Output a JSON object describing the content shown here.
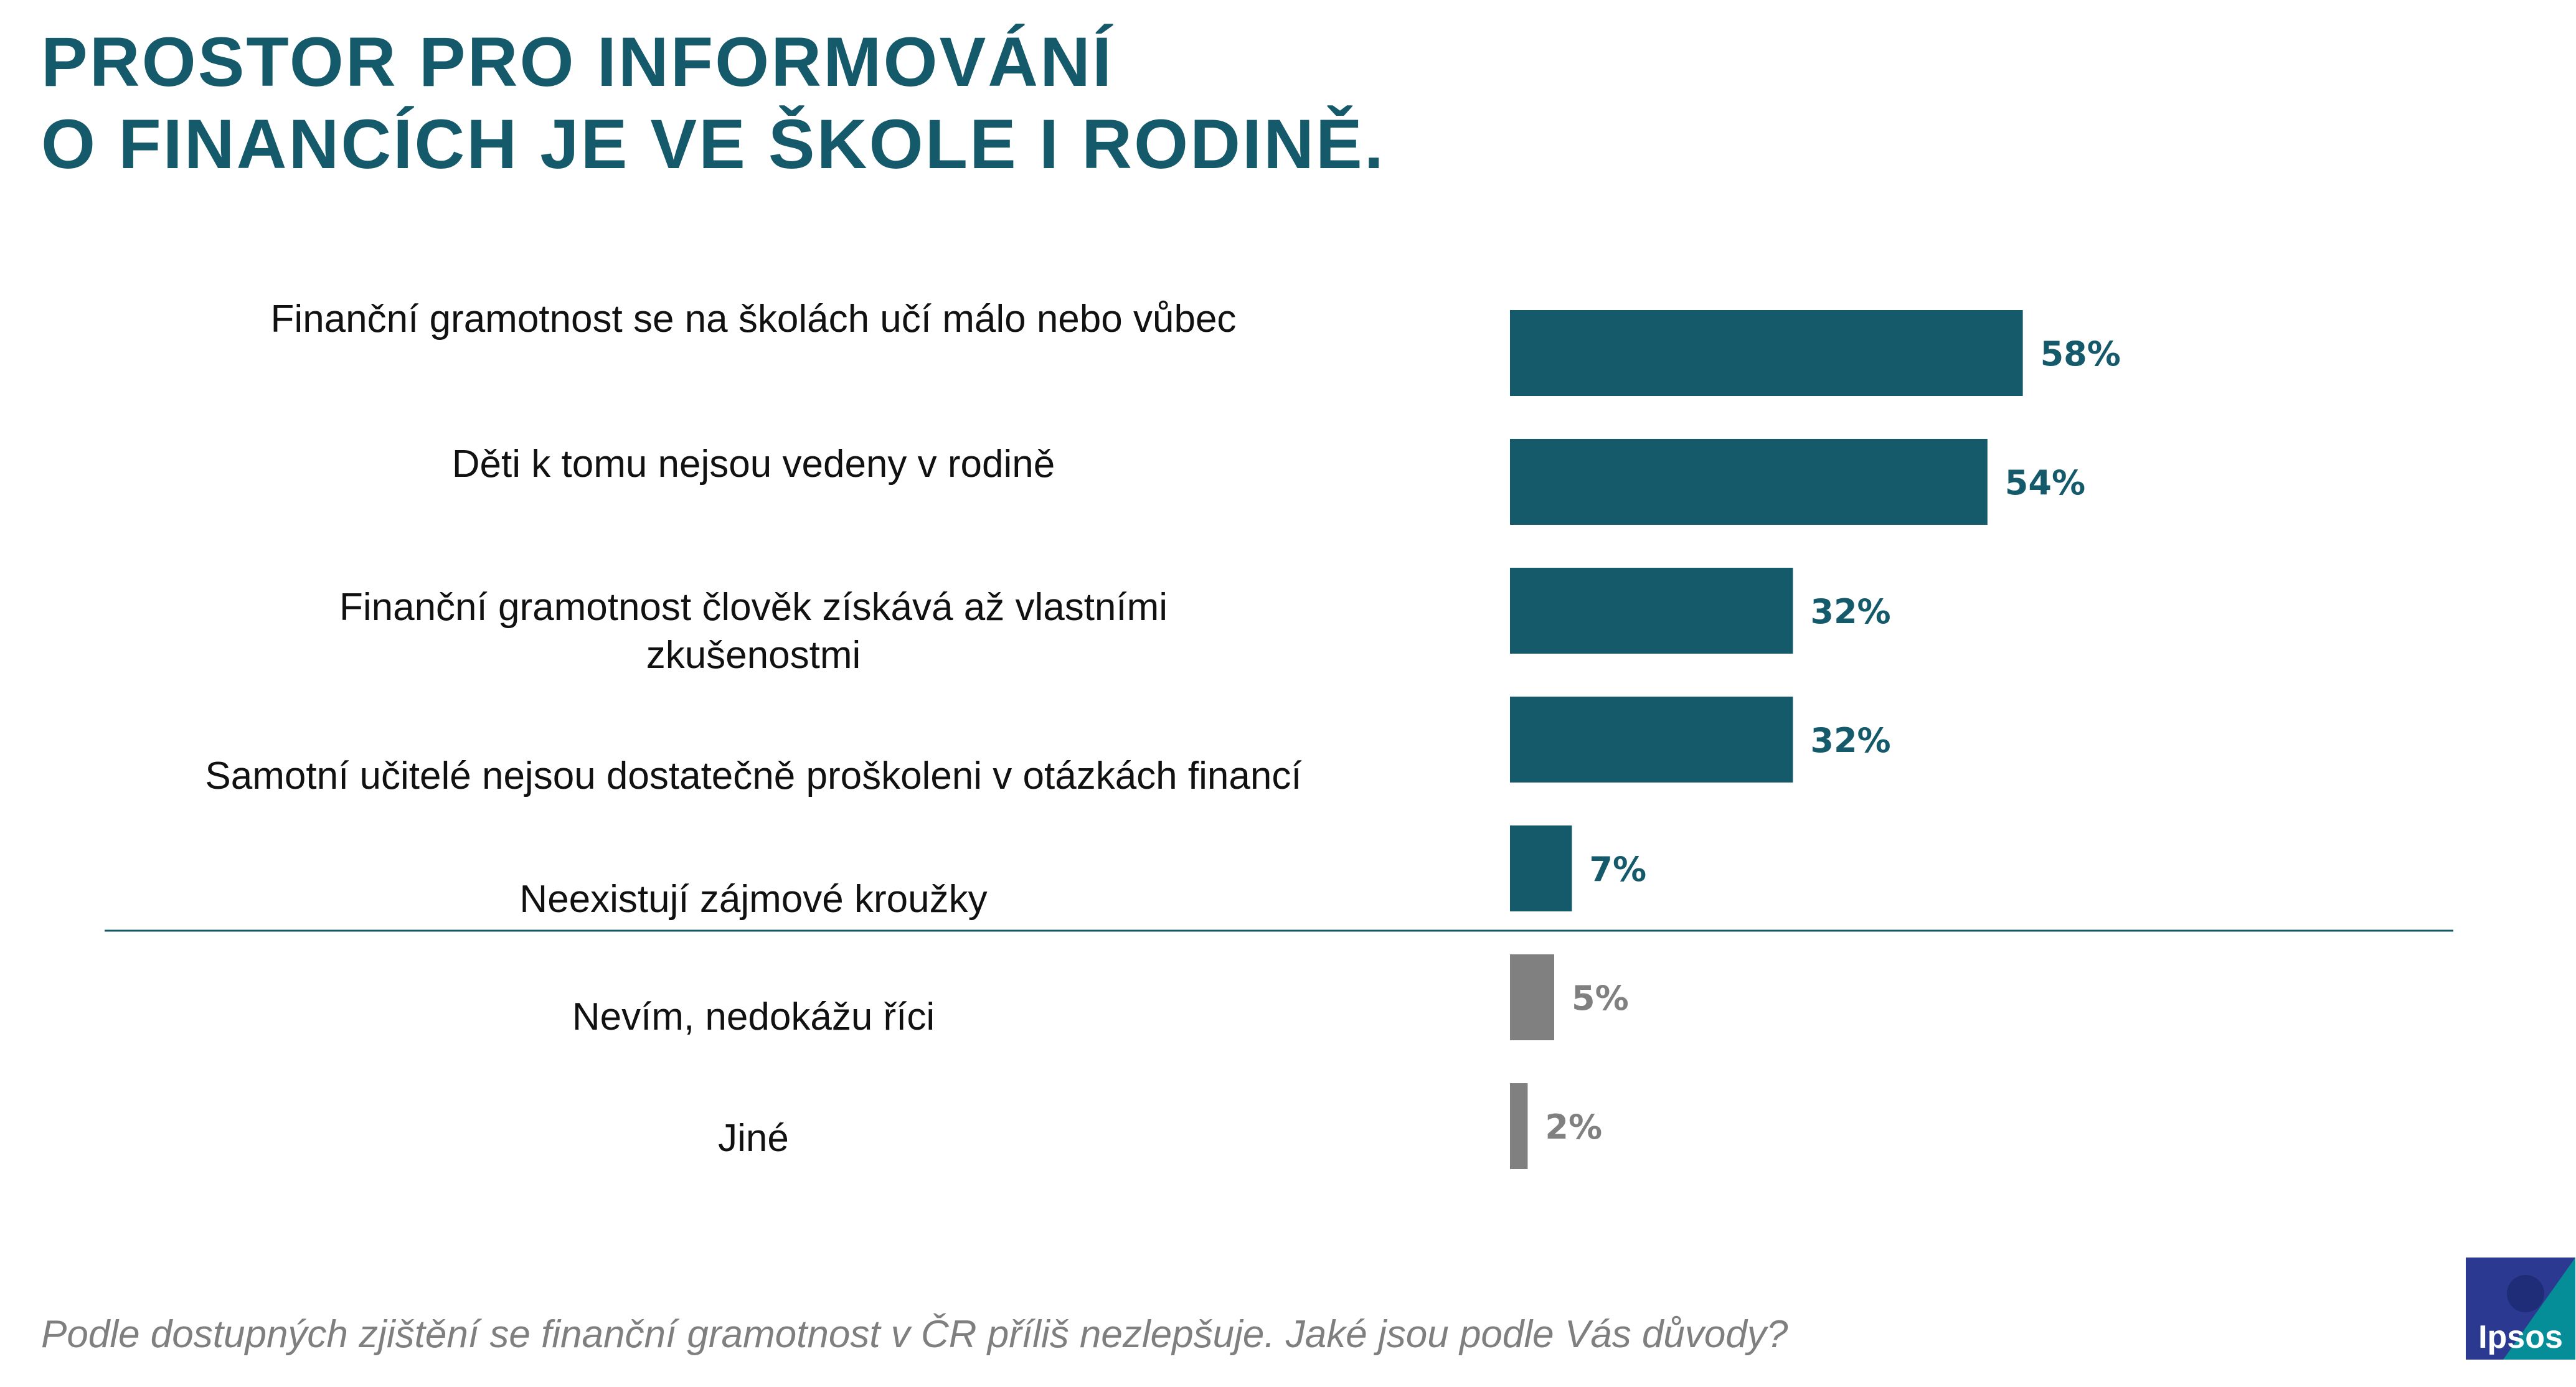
{
  "title": {
    "line1": "PROSTOR PRO INFORMOVÁNÍ",
    "line2": "O FINANCÍCH JE VE ŠKOLE I RODINĚ."
  },
  "chart_data": {
    "type": "bar",
    "orientation": "horizontal",
    "categories": [
      "Finanční gramotnost se na školách učí málo nebo vůbec",
      "Děti k tomu nejsou vedeny v rodině",
      "Finanční gramotnost člověk získává až vlastními zkušenostmi",
      "Samotní učitelé nejsou dostatečně proškoleni v otázkách financí",
      "Neexistují zájmové kroužky",
      "Nevím, nedokážu říci",
      "Jiné"
    ],
    "values": [
      58,
      54,
      32,
      32,
      7,
      5,
      2
    ],
    "value_labels": [
      "58%",
      "54%",
      "32%",
      "32%",
      "7%",
      "5%",
      "2%"
    ],
    "label_lines": [
      [
        "Finanční gramotnost se na školách učí málo nebo vůbec"
      ],
      [
        "Děti k tomu nejsou vedeny v rodině"
      ],
      [
        "Finanční gramotnost člověk získává až vlastními",
        "zkušenostmi"
      ],
      [
        "Samotní učitelé nejsou dostatečně proškoleni v otázkách financí"
      ],
      [
        "Neexistují zájmové kroužky"
      ],
      [
        "Nevím, nedokážu říci"
      ],
      [
        "Jiné"
      ]
    ],
    "colors": {
      "main": "#155a6a",
      "other": "#808080"
    },
    "main_count": 5,
    "unit": "%",
    "grid": false,
    "separator_after_index": 4
  },
  "footnote": "Podle dostupných zjištění se finanční gramotnost v ČR příliš nezlepšuje. Jaké jsou podle Vás důvody?",
  "logo": {
    "text": "Ipsos",
    "colors": [
      "#2b3990",
      "#009d9a"
    ]
  }
}
